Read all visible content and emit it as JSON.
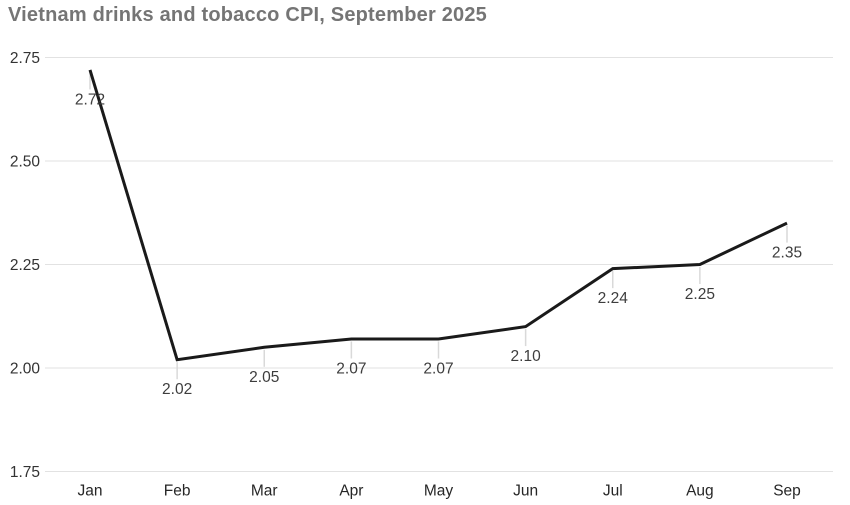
{
  "chart_data": {
    "type": "line",
    "title": "Vietnam drinks and tobacco CPI, September 2025",
    "categories": [
      "Jan",
      "Feb",
      "Mar",
      "Apr",
      "May",
      "Jun",
      "Jul",
      "Aug",
      "Sep"
    ],
    "series": [
      {
        "name": "Vietnam drinks and tobacco CPI",
        "values": [
          2.72,
          2.02,
          2.05,
          2.07,
          2.07,
          2.1,
          2.24,
          2.25,
          2.35
        ]
      }
    ],
    "data_labels": [
      "2.72",
      "2.02",
      "2.05",
      "2.07",
      "2.07",
      "2.10",
      "2.24",
      "2.25",
      "2.35"
    ],
    "xlabel": "",
    "ylabel": "",
    "y_ticks": [
      "2.75",
      "2.50",
      "2.25",
      "2.00",
      "1.75"
    ],
    "ylim": [
      1.75,
      2.75
    ],
    "grid": "horizontal-only",
    "legend": "none",
    "colors": {
      "background": "#ffffff",
      "title": "#757575",
      "line": "#1a1a1a",
      "gridline": "#e2e2e2",
      "leader_line": "#d9d9d9",
      "y_tick_label": "#333333",
      "x_tick_label": "#262626",
      "data_label": "#3d3d3d"
    }
  }
}
